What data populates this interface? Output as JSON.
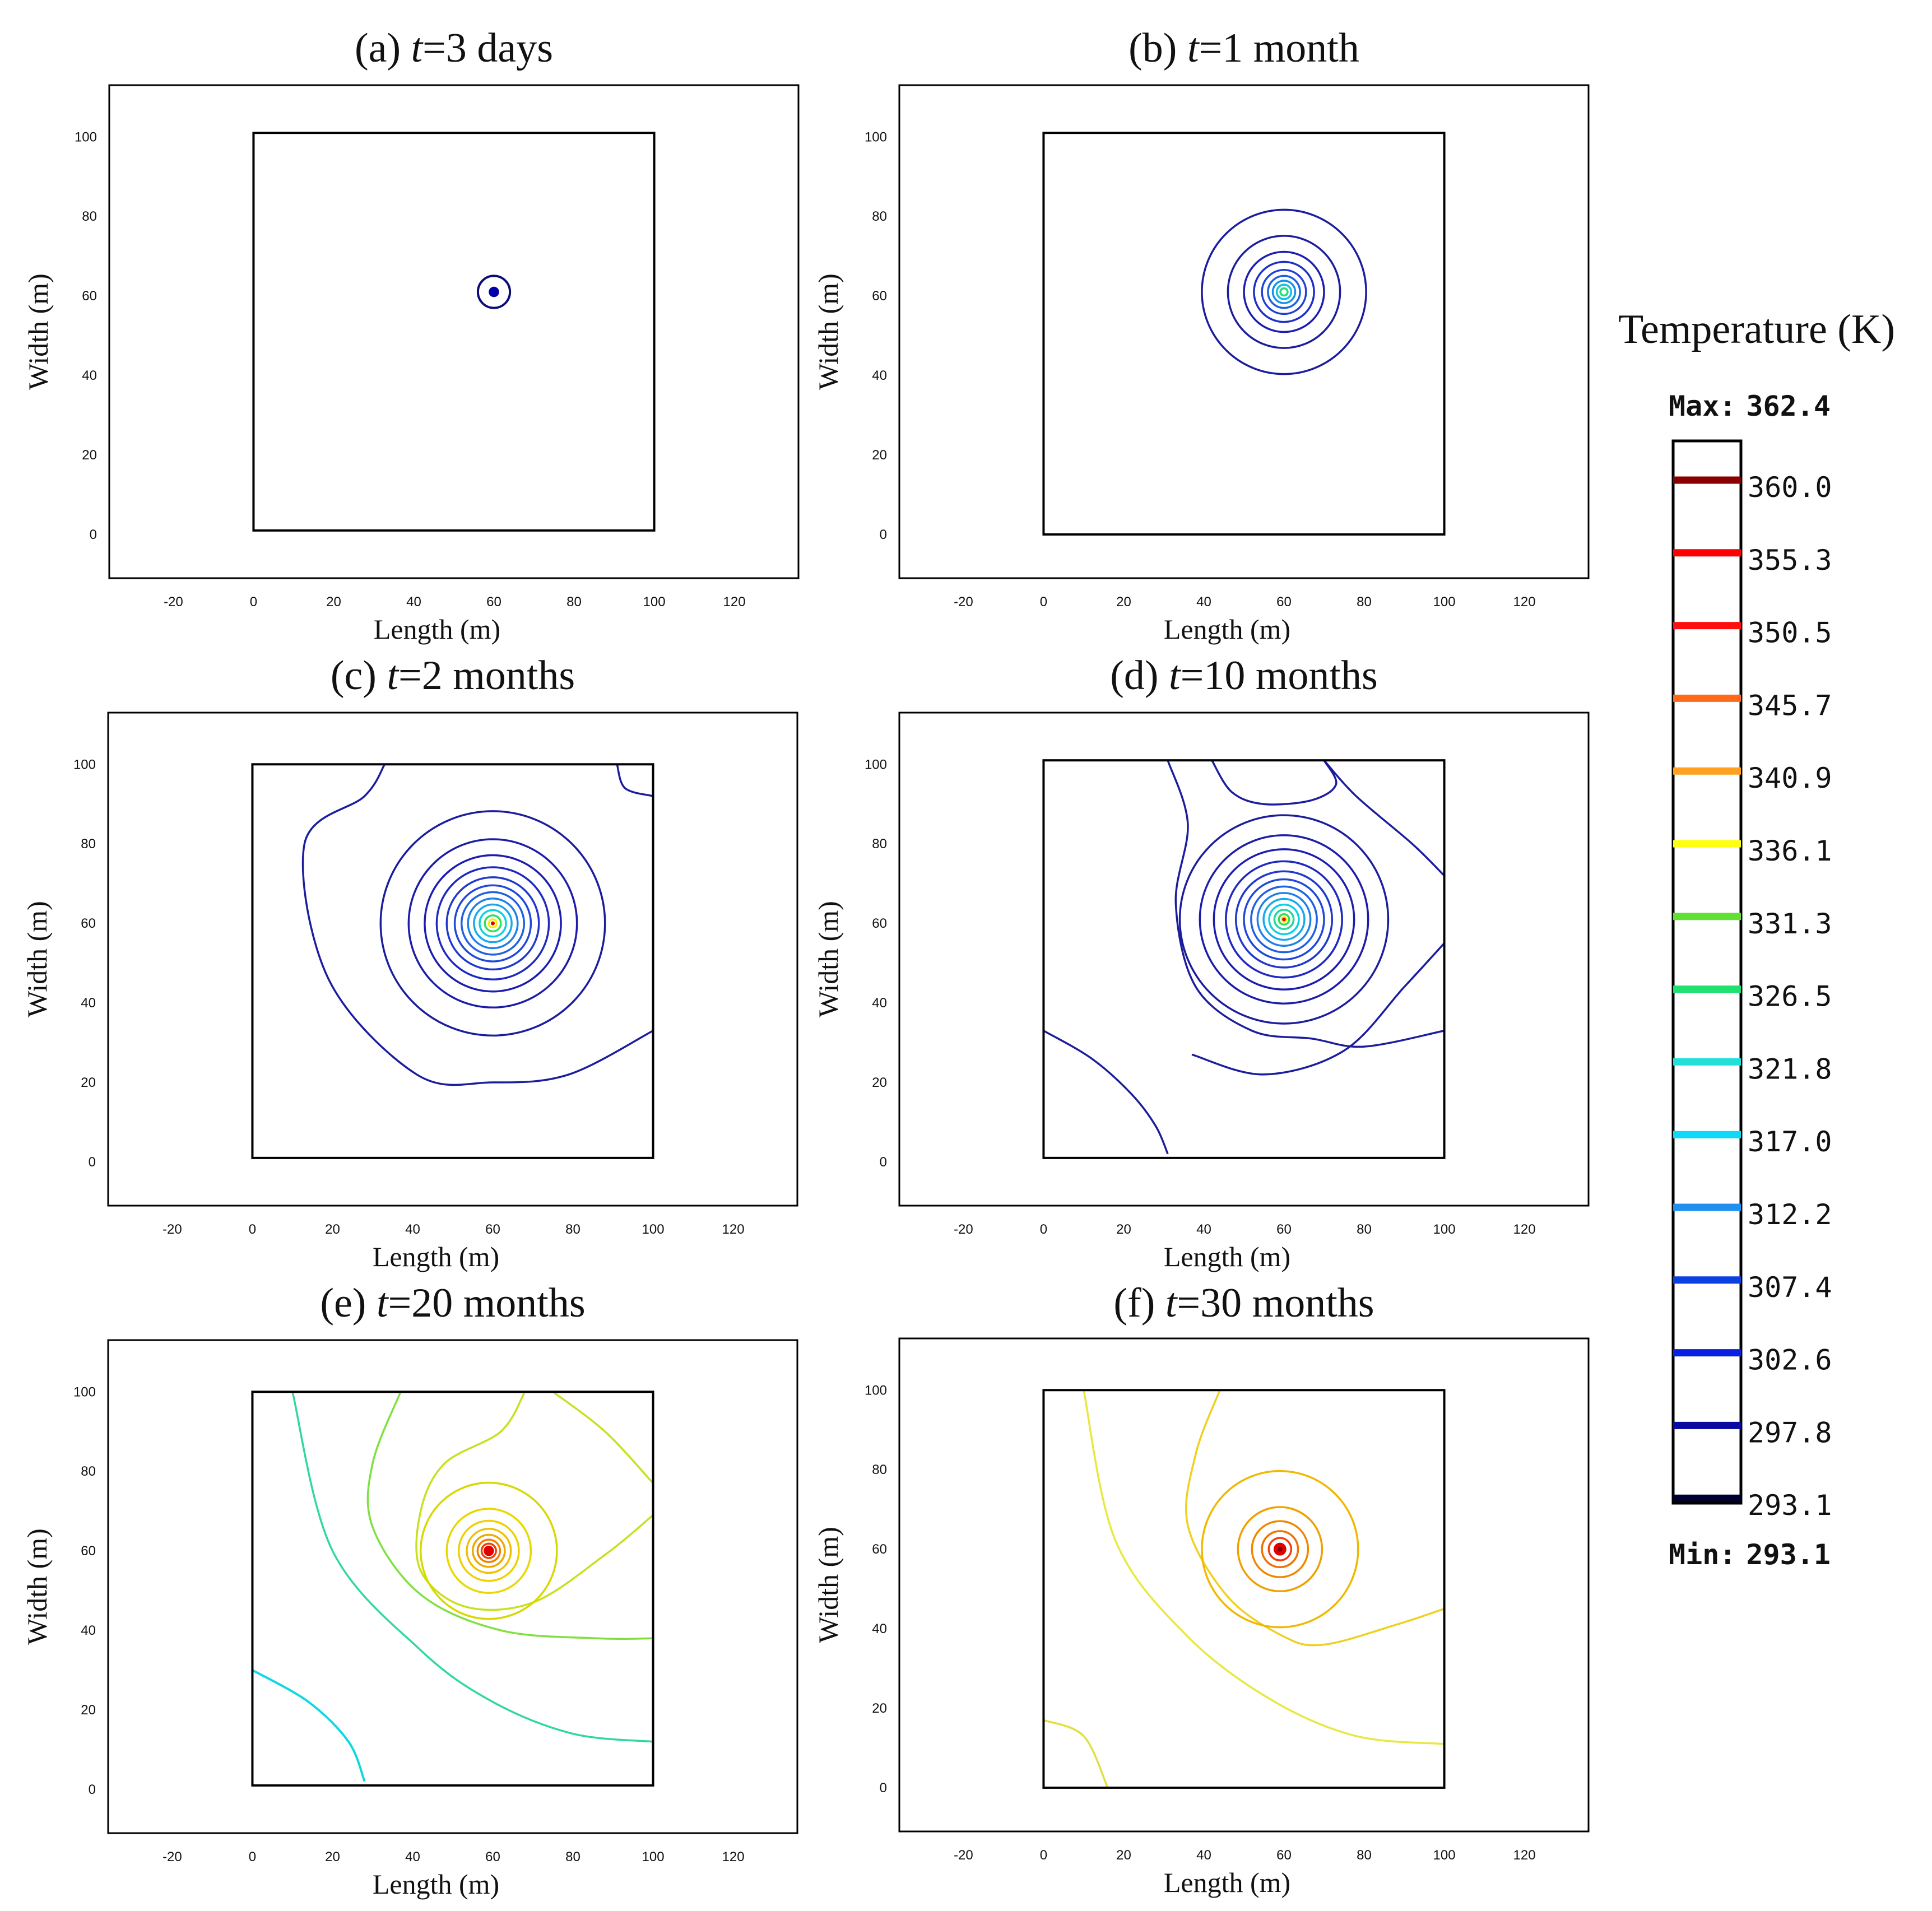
{
  "chart_data": {
    "type": "contour",
    "panels": [
      {
        "label": "(a)",
        "t_symbol": "t",
        "time": "=3 days",
        "xlabel": "Length (m)",
        "ylabel": "Width (m)",
        "xlim": [
          -36,
          136
        ],
        "ylim": [
          -11,
          113
        ],
        "xticks": [
          -20,
          0,
          20,
          40,
          60,
          80,
          100,
          120
        ],
        "yticks": [
          0,
          20,
          40,
          60,
          80,
          100
        ],
        "domain": [
          0,
          100,
          1,
          101
        ],
        "source": [
          60,
          61
        ],
        "circles": [
          {
            "r": 4,
            "color": "#0a0a7a",
            "width": 4
          },
          {
            "r": 1.3,
            "color": "#0000aa",
            "fill": true
          }
        ],
        "paths": []
      },
      {
        "label": "(b)",
        "t_symbol": "t",
        "time": "=1 month",
        "xlabel": "Length (m)",
        "ylabel": "Width (m)",
        "xlim": [
          -36,
          136
        ],
        "ylim": [
          -11,
          113
        ],
        "xticks": [
          -20,
          0,
          20,
          40,
          60,
          80,
          100,
          120
        ],
        "yticks": [
          0,
          20,
          40,
          60,
          80,
          100
        ],
        "domain": [
          0,
          100,
          0,
          101
        ],
        "source": [
          60,
          61
        ],
        "circles": [
          {
            "r": 20.5,
            "color": "#1c1c9e",
            "width": 3.5
          },
          {
            "r": 14,
            "color": "#1c1c9e",
            "width": 3.5
          },
          {
            "r": 10,
            "color": "#1c1cb0",
            "width": 3.5
          },
          {
            "r": 7.5,
            "color": "#1e2ec8",
            "width": 3.5
          },
          {
            "r": 5.5,
            "color": "#2040d8",
            "width": 3.5
          },
          {
            "r": 4,
            "color": "#2060e0",
            "width": 3.5
          },
          {
            "r": 2.8,
            "color": "#1890e8",
            "width": 3.5
          },
          {
            "r": 1.8,
            "color": "#10c0e0",
            "width": 3.5
          },
          {
            "r": 0.9,
            "color": "#20e070",
            "width": 3.5
          }
        ],
        "paths": []
      },
      {
        "label": "(c)",
        "t_symbol": "t",
        "time": "=2 months",
        "xlabel": "Length (m)",
        "ylabel": "Width (m)",
        "xlim": [
          -36,
          136
        ],
        "ylim": [
          -11,
          113
        ],
        "xticks": [
          -20,
          0,
          20,
          40,
          60,
          80,
          100,
          120
        ],
        "yticks": [
          0,
          20,
          40,
          60,
          80,
          100
        ],
        "domain": [
          0,
          100,
          1,
          100
        ],
        "source": [
          60,
          60
        ],
        "circles": [
          {
            "r": 28,
            "color": "#1c1c9e",
            "width": 3.5
          },
          {
            "r": 21,
            "color": "#1c1ca8",
            "width": 3.5
          },
          {
            "r": 17,
            "color": "#1c1cb0",
            "width": 3.5
          },
          {
            "r": 14,
            "color": "#1e28c0",
            "width": 3.5
          },
          {
            "r": 11.5,
            "color": "#2038cc",
            "width": 3.5
          },
          {
            "r": 9.5,
            "color": "#2048d8",
            "width": 3.5
          },
          {
            "r": 7.8,
            "color": "#2060e0",
            "width": 3.5
          },
          {
            "r": 6.2,
            "color": "#2080e8",
            "width": 3.5
          },
          {
            "r": 4.7,
            "color": "#18a8ec",
            "width": 3.5
          },
          {
            "r": 3.3,
            "color": "#10d0e0",
            "width": 3.5
          },
          {
            "r": 2.0,
            "color": "#30e060",
            "width": 3.5
          },
          {
            "r": 1.0,
            "color": "#f0f000",
            "width": 3.5
          },
          {
            "r": 0.5,
            "color": "#e00000",
            "fill": true
          }
        ],
        "paths": [
          {
            "d": [
              [
                33,
                100
              ],
              [
                28,
                92
              ],
              [
                13,
                80
              ],
              [
                19,
                46
              ],
              [
                41,
                22
              ],
              [
                60,
                20
              ],
              [
                79,
                22
              ],
              [
                100,
                33
              ]
            ],
            "color": "#1c1c9e",
            "width": 3.5
          },
          {
            "d": [
              [
                91,
                100
              ],
              [
                93,
                94
              ],
              [
                100,
                92
              ]
            ],
            "color": "#1c1c9e",
            "width": 3.5
          }
        ]
      },
      {
        "label": "(d)",
        "t_symbol": "t",
        "time": "=10 months",
        "xlabel": "Length (m)",
        "ylabel": "Width (m)",
        "xlim": [
          -36,
          136
        ],
        "ylim": [
          -11,
          113
        ],
        "xticks": [
          -20,
          0,
          20,
          40,
          60,
          80,
          100,
          120
        ],
        "yticks": [
          0,
          20,
          40,
          60,
          80,
          100
        ],
        "domain": [
          0,
          100,
          1,
          101
        ],
        "source": [
          60,
          61
        ],
        "circles": [
          {
            "r": 26,
            "color": "#1c1c9e",
            "width": 3.5
          },
          {
            "r": 21,
            "color": "#1c1ca8",
            "width": 3.5
          },
          {
            "r": 17.5,
            "color": "#1c1cb0",
            "width": 3.5
          },
          {
            "r": 14.5,
            "color": "#1e28c0",
            "width": 3.5
          },
          {
            "r": 12,
            "color": "#2038cc",
            "width": 3.5
          },
          {
            "r": 10,
            "color": "#2048d8",
            "width": 3.5
          },
          {
            "r": 8.2,
            "color": "#2060e0",
            "width": 3.5
          },
          {
            "r": 6.6,
            "color": "#2080e8",
            "width": 3.5
          },
          {
            "r": 5.1,
            "color": "#18a8ec",
            "width": 3.5
          },
          {
            "r": 3.7,
            "color": "#10d0e0",
            "width": 3.5
          },
          {
            "r": 2.4,
            "color": "#20d8a0",
            "width": 3.5
          },
          {
            "r": 1.3,
            "color": "#30e050",
            "width": 3.5
          },
          {
            "r": 0.8,
            "color": "#f0f000",
            "fill": true
          },
          {
            "r": 0.45,
            "color": "#e00000",
            "fill": true
          }
        ],
        "paths": [
          {
            "d": [
              [
                31,
                101
              ],
              [
                36,
                85
              ],
              [
                33,
                65
              ],
              [
                38,
                44
              ],
              [
                52,
                33
              ],
              [
                67,
                31
              ],
              [
                80,
                29
              ],
              [
                100,
                33
              ]
            ],
            "color": "#1c1c9e",
            "width": 3.5
          },
          {
            "d": [
              [
                42,
                101
              ],
              [
                47,
                93
              ],
              [
                55,
                90
              ],
              [
                67,
                91
              ],
              [
                73,
                95
              ],
              [
                70,
                101
              ]
            ],
            "color": "#1c1c9e",
            "width": 3.5
          },
          {
            "d": [
              [
                70,
                101
              ],
              [
                78,
                92
              ],
              [
                92,
                80
              ],
              [
                100,
                72
              ]
            ],
            "color": "#1c1c9e",
            "width": 3.5
          },
          {
            "d": [
              [
                0,
                33
              ],
              [
                12,
                26
              ],
              [
                22,
                17
              ],
              [
                28,
                9
              ],
              [
                31,
                2
              ]
            ],
            "color": "#1c1c9e",
            "width": 3.5
          },
          {
            "d": [
              [
                37,
                27
              ],
              [
                55,
                22
              ],
              [
                75,
                28
              ],
              [
                90,
                44
              ],
              [
                100,
                55
              ]
            ],
            "color": "#1c1c9e",
            "width": 3.5
          }
        ]
      },
      {
        "label": "(e)",
        "t_symbol": "t",
        "time": "=20 months",
        "xlabel": "Length (m)",
        "ylabel": "Width (m)",
        "xlim": [
          -36,
          136
        ],
        "ylim": [
          -11,
          113
        ],
        "xticks": [
          -20,
          0,
          20,
          40,
          60,
          80,
          100,
          120
        ],
        "yticks": [
          0,
          20,
          40,
          60,
          80,
          100
        ],
        "domain": [
          0,
          100,
          1,
          100
        ],
        "source": [
          59,
          60
        ],
        "circles": [
          {
            "r": 17,
            "color": "#d8d800",
            "width": 3.5
          },
          {
            "r": 10.5,
            "color": "#e8d800",
            "width": 3.5
          },
          {
            "r": 7.5,
            "color": "#f0d000",
            "width": 3.5
          },
          {
            "r": 5.5,
            "color": "#f0c000",
            "width": 3.5
          },
          {
            "r": 4.0,
            "color": "#f0a800",
            "width": 3.5
          },
          {
            "r": 2.8,
            "color": "#f08000",
            "width": 3.5
          },
          {
            "r": 1.8,
            "color": "#f04000",
            "width": 3.5
          },
          {
            "r": 1.3,
            "color": "#e00000",
            "fill": true
          }
        ],
        "paths": [
          {
            "d": [
              [
                10,
                100
              ],
              [
                20,
                60
              ],
              [
                42,
                35
              ],
              [
                60,
                22
              ],
              [
                80,
                14
              ],
              [
                100,
                12
              ]
            ],
            "color": "#30d8a0",
            "width": 3.5
          },
          {
            "d": [
              [
                37,
                100
              ],
              [
                30,
                82
              ],
              [
                30,
                66
              ],
              [
                42,
                49
              ],
              [
                62,
                40
              ],
              [
                86,
                38
              ],
              [
                100,
                38
              ]
            ],
            "color": "#80e040",
            "width": 3.5
          },
          {
            "d": [
              [
                68,
                100
              ],
              [
                62,
                90
              ],
              [
                48,
                82
              ],
              [
                42,
                70
              ],
              [
                42,
                55
              ],
              [
                53,
                46
              ],
              [
                70,
                47
              ],
              [
                88,
                59
              ],
              [
                100,
                69
              ]
            ],
            "color": "#c8e020",
            "width": 3.5
          },
          {
            "d": [
              [
                75,
                100
              ],
              [
                88,
                90
              ],
              [
                100,
                77
              ]
            ],
            "color": "#c8e020",
            "width": 3.5
          },
          {
            "d": [
              [
                0,
                30
              ],
              [
                14,
                22
              ],
              [
                24,
                12
              ],
              [
                28,
                2
              ]
            ],
            "color": "#10d8e0",
            "width": 4
          }
        ]
      },
      {
        "label": "(f)",
        "t_symbol": "t",
        "time": "=30 months",
        "xlabel": "Length (m)",
        "ylabel": "Width (m)",
        "xlim": [
          -36,
          136
        ],
        "ylim": [
          -11,
          113
        ],
        "xticks": [
          -20,
          0,
          20,
          40,
          60,
          80,
          100,
          120
        ],
        "yticks": [
          0,
          20,
          40,
          60,
          80,
          100
        ],
        "domain": [
          0,
          100,
          0,
          100
        ],
        "source": [
          59,
          60
        ],
        "circles": [
          {
            "r": 19.5,
            "color": "#f0b800",
            "width": 3.5
          },
          {
            "r": 10.5,
            "color": "#f0a000",
            "width": 3.5
          },
          {
            "r": 7.0,
            "color": "#f08800",
            "width": 3.5
          },
          {
            "r": 4.5,
            "color": "#f07000",
            "width": 3.5
          },
          {
            "r": 2.8,
            "color": "#f04010",
            "width": 3.5
          },
          {
            "r": 1.6,
            "color": "#e00000",
            "fill": true
          },
          {
            "r": 0.6,
            "color": "#800000",
            "fill": true
          }
        ],
        "paths": [
          {
            "d": [
              [
                10,
                100
              ],
              [
                18,
                62
              ],
              [
                36,
                38
              ],
              [
                57,
                22
              ],
              [
                78,
                13
              ],
              [
                100,
                11
              ]
            ],
            "color": "#e8e840",
            "width": 3.5
          },
          {
            "d": [
              [
                44,
                100
              ],
              [
                38,
                84
              ],
              [
                36,
                66
              ],
              [
                46,
                48
              ],
              [
                60,
                38
              ],
              [
                70,
                36
              ],
              [
                88,
                41
              ],
              [
                100,
                45
              ]
            ],
            "color": "#f0d020",
            "width": 3.5
          },
          {
            "d": [
              [
                0,
                17
              ],
              [
                10,
                13
              ],
              [
                16,
                0
              ]
            ],
            "color": "#e0e040",
            "width": 3.5
          }
        ]
      }
    ],
    "colorbar": {
      "title": "Temperature (K)",
      "max_label": "Max:",
      "max_value": "362.4",
      "min_label": "Min:",
      "min_value": "293.1",
      "levels": [
        {
          "value": "360.0",
          "color": "#8a0000"
        },
        {
          "value": "355.3",
          "color": "#ff0000"
        },
        {
          "value": "350.5",
          "color": "#ff1010"
        },
        {
          "value": "345.7",
          "color": "#ff6a1a"
        },
        {
          "value": "340.9",
          "color": "#ffa020"
        },
        {
          "value": "336.1",
          "color": "#ffff10"
        },
        {
          "value": "331.3",
          "color": "#60e030"
        },
        {
          "value": "326.5",
          "color": "#20e070"
        },
        {
          "value": "321.8",
          "color": "#20e0d8"
        },
        {
          "value": "317.0",
          "color": "#10d8f8"
        },
        {
          "value": "312.2",
          "color": "#2090f0"
        },
        {
          "value": "307.4",
          "color": "#0a40e0"
        },
        {
          "value": "302.6",
          "color": "#0a20e0"
        },
        {
          "value": "297.8",
          "color": "#0a0aa0"
        },
        {
          "value": "293.1",
          "color": "#000030"
        }
      ]
    }
  }
}
